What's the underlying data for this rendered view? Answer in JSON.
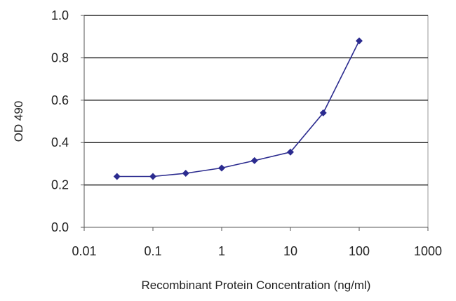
{
  "chart_data": {
    "type": "line",
    "title": "",
    "xlabel": "Recombinant Protein Concentration (ng/ml)",
    "ylabel": "OD 490",
    "x_scale": "log",
    "xlim": [
      0.01,
      1000
    ],
    "ylim": [
      0.0,
      1.0
    ],
    "x_ticks": [
      0.01,
      0.1,
      1,
      10,
      100,
      1000
    ],
    "x_tick_labels": [
      "0.01",
      "0.1",
      "1",
      "10",
      "100",
      "1000"
    ],
    "y_ticks": [
      0.0,
      0.2,
      0.4,
      0.6,
      0.8,
      1.0
    ],
    "y_tick_labels": [
      "0.0",
      "0.2",
      "0.4",
      "0.6",
      "0.8",
      "1.0"
    ],
    "grid": "horizontal",
    "legend": "none",
    "series": [
      {
        "color": "#2b2b8f",
        "x": [
          0.03,
          0.1,
          0.3,
          1,
          3,
          10,
          30,
          100
        ],
        "y": [
          0.24,
          0.24,
          0.255,
          0.28,
          0.315,
          0.355,
          0.54,
          0.88
        ]
      }
    ]
  }
}
